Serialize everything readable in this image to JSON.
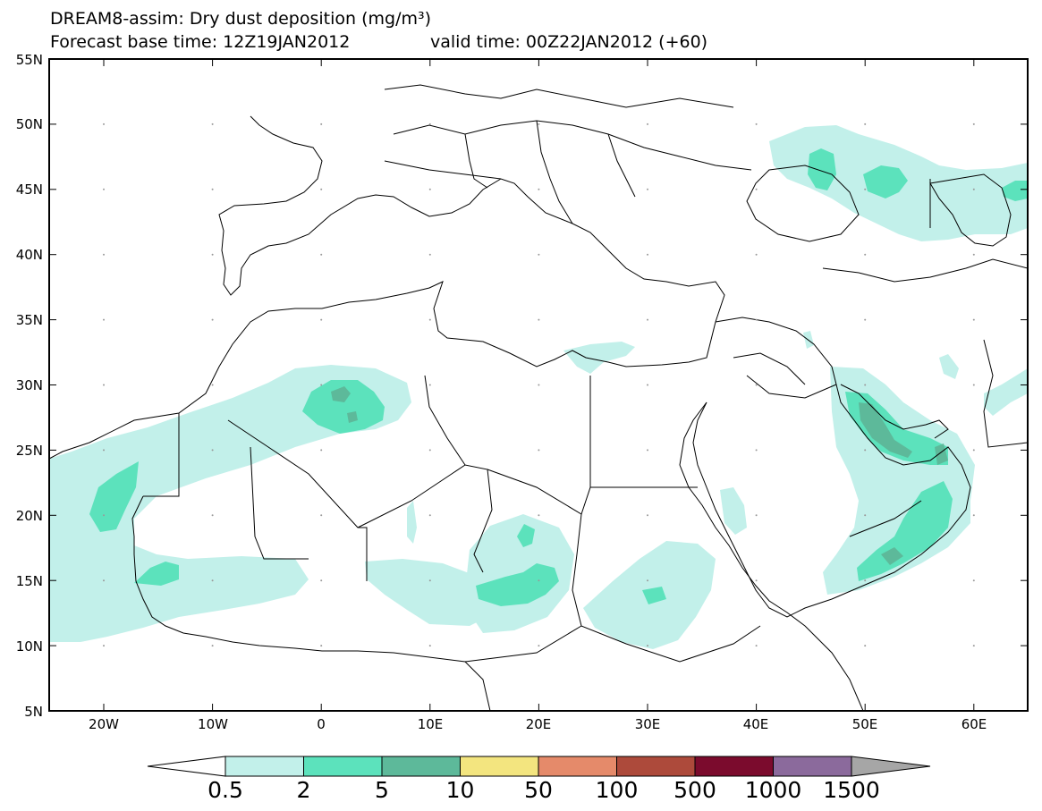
{
  "header": {
    "title": "DREAM8-assim: Dry dust deposition (mg/m³)",
    "base_time": "Forecast base time: 12Z19JAN2012",
    "valid_time": "valid time: 00Z22JAN2012 (+60)"
  },
  "axes": {
    "lat_labels": [
      "55N",
      "50N",
      "45N",
      "40N",
      "35N",
      "30N",
      "25N",
      "20N",
      "15N",
      "10N",
      "5N"
    ],
    "lon_labels": [
      "20W",
      "10W",
      "0",
      "10E",
      "20E",
      "30E",
      "40E",
      "50E",
      "60E"
    ]
  },
  "colorbar": {
    "labels": [
      "0.5",
      "2",
      "5",
      "10",
      "50",
      "100",
      "500",
      "1000",
      "1500"
    ],
    "colors": [
      "#c2f0ea",
      "#5ce2bc",
      "#5db99a",
      "#f3e57f",
      "#e58a6a",
      "#ad4a3b",
      "#7b0b2d",
      "#8b6a9c",
      "#a6a6a6"
    ],
    "under_color": "#ffffff"
  },
  "style": {
    "ocean": "#ffffff",
    "border_color": "#000000"
  }
}
